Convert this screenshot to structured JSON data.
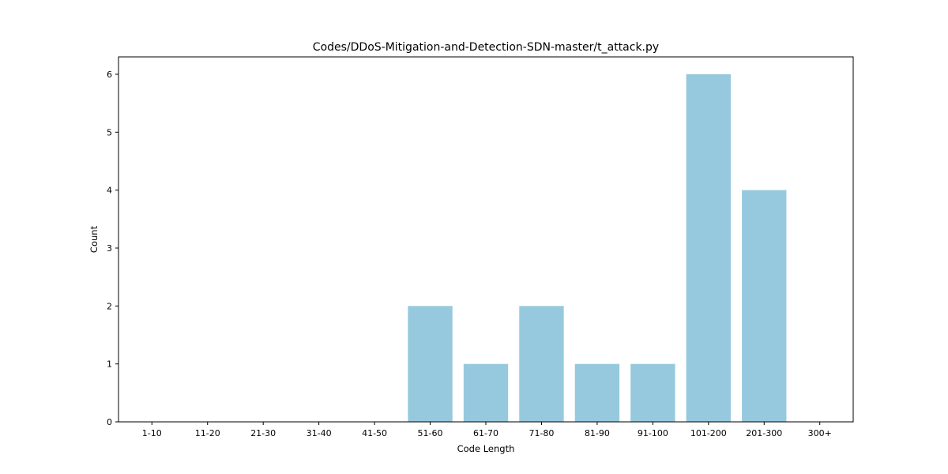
{
  "chart_data": {
    "type": "bar",
    "title": "Codes/DDoS-Mitigation-and-Detection-SDN-master/t_attack.py",
    "xlabel": "Code Length",
    "ylabel": "Count",
    "categories": [
      "1-10",
      "11-20",
      "21-30",
      "31-40",
      "41-50",
      "51-60",
      "61-70",
      "71-80",
      "81-90",
      "91-100",
      "101-200",
      "201-300",
      "300+"
    ],
    "values": [
      0,
      0,
      0,
      0,
      0,
      2,
      1,
      2,
      1,
      1,
      6,
      4,
      0
    ],
    "ylim": [
      0,
      6.3
    ],
    "yticks": [
      0,
      1,
      2,
      3,
      4,
      5,
      6
    ],
    "grid": false,
    "bar_color": "#96c9dd"
  }
}
